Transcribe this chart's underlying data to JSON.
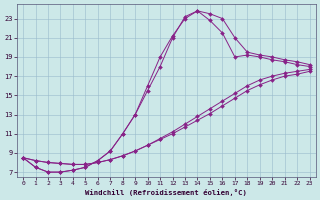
{
  "xlabel": "Windchill (Refroidissement éolien,°C)",
  "bg_color": "#cce8e8",
  "grid_color": "#99bbcc",
  "line_color": "#882288",
  "xlim": [
    -0.5,
    23.5
  ],
  "ylim": [
    6.5,
    24.5
  ],
  "xticks": [
    0,
    1,
    2,
    3,
    4,
    5,
    6,
    7,
    8,
    9,
    10,
    11,
    12,
    13,
    14,
    15,
    16,
    17,
    18,
    19,
    20,
    21,
    22,
    23
  ],
  "yticks": [
    7,
    9,
    11,
    13,
    15,
    17,
    19,
    21,
    23
  ],
  "curve1_x": [
    0,
    1,
    2,
    3,
    4,
    5,
    6,
    7,
    8,
    9,
    10,
    11,
    12,
    13,
    14,
    15,
    16,
    17,
    18,
    19,
    20,
    21,
    22,
    23
  ],
  "curve1_y": [
    8.5,
    7.5,
    7.0,
    7.0,
    7.2,
    7.5,
    8.2,
    9.2,
    11.0,
    13.0,
    16.0,
    19.0,
    21.2,
    23.0,
    23.8,
    23.5,
    23.0,
    21.0,
    19.5,
    19.2,
    19.0,
    18.7,
    18.5,
    18.2
  ],
  "curve2_x": [
    0,
    1,
    2,
    3,
    4,
    5,
    6,
    7,
    8,
    9,
    10,
    11,
    12,
    13,
    14,
    15,
    16,
    17,
    18,
    19,
    20,
    21,
    22,
    23
  ],
  "curve2_y": [
    8.5,
    7.5,
    7.0,
    7.0,
    7.2,
    7.5,
    8.2,
    9.2,
    11.0,
    13.0,
    15.5,
    18.0,
    21.0,
    23.2,
    23.8,
    22.8,
    21.5,
    19.0,
    19.2,
    19.0,
    18.7,
    18.5,
    18.2,
    18.0
  ],
  "curve3_x": [
    0,
    1,
    2,
    3,
    4,
    5,
    6,
    7,
    8,
    9,
    10,
    11,
    12,
    13,
    14,
    15,
    16,
    17,
    18,
    19,
    20,
    21,
    22,
    23
  ],
  "curve3_y": [
    8.5,
    8.2,
    8.0,
    7.9,
    7.8,
    7.8,
    8.0,
    8.3,
    8.7,
    9.2,
    9.8,
    10.5,
    11.2,
    12.0,
    12.8,
    13.6,
    14.4,
    15.2,
    16.0,
    16.6,
    17.0,
    17.3,
    17.5,
    17.7
  ],
  "curve4_x": [
    0,
    1,
    2,
    3,
    4,
    5,
    6,
    7,
    8,
    9,
    10,
    11,
    12,
    13,
    14,
    15,
    16,
    17,
    18,
    19,
    20,
    21,
    22,
    23
  ],
  "curve4_y": [
    8.5,
    8.2,
    8.0,
    7.9,
    7.8,
    7.8,
    8.0,
    8.3,
    8.7,
    9.2,
    9.8,
    10.4,
    11.0,
    11.7,
    12.4,
    13.1,
    13.9,
    14.7,
    15.5,
    16.1,
    16.6,
    17.0,
    17.2,
    17.5
  ],
  "figsize": [
    3.2,
    2.0
  ],
  "dpi": 100
}
